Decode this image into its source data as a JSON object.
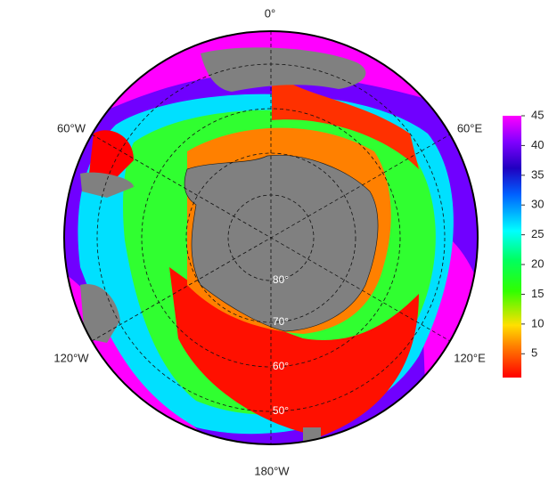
{
  "map": {
    "lon_labels": [
      "0°",
      "60°E",
      "120°E",
      "180°W",
      "120°W",
      "60°W"
    ],
    "lat_labels": [
      "80°",
      "70°",
      "60°",
      "50°"
    ]
  },
  "colorbar": {
    "lim": [
      1,
      45
    ],
    "ticks": [
      5,
      10,
      15,
      20,
      25,
      30,
      35,
      40,
      45
    ]
  }
}
